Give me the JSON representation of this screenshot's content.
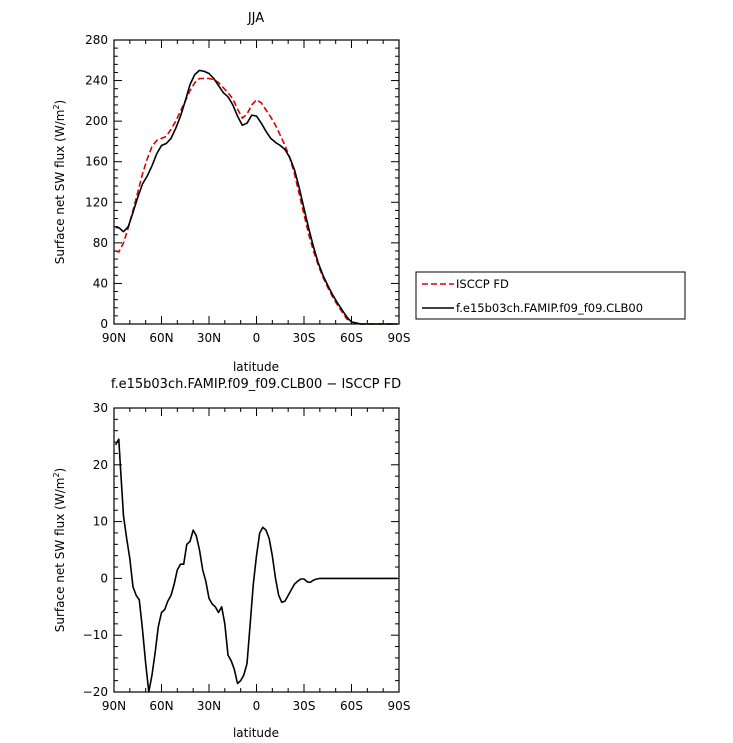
{
  "chart_data": [
    {
      "type": "line",
      "title": "JJA",
      "xlabel": "latitude",
      "ylabel": "Surface net SW flux (W/m²)",
      "ylabel_parts": {
        "main": "Surface net SW flux (W/m",
        "sup": "2",
        "end": ")"
      },
      "xlim": [
        90,
        -90
      ],
      "ylim": [
        0,
        280
      ],
      "x_ticks": [
        90,
        60,
        30,
        0,
        -30,
        -60,
        -90
      ],
      "x_tick_labels": [
        "90N",
        "60N",
        "30N",
        "0",
        "30S",
        "60S",
        "90S"
      ],
      "y_ticks": [
        0,
        40,
        80,
        120,
        160,
        200,
        240,
        280
      ],
      "y_tick_labels": [
        "0",
        "40",
        "80",
        "120",
        "160",
        "200",
        "240",
        "280"
      ],
      "legend_position": "right",
      "series": [
        {
          "name": "ISCCP FD",
          "color": "#dd0000",
          "dash": "dashed",
          "x": [
            89,
            87,
            84,
            81,
            78,
            75,
            72,
            69,
            66,
            63,
            60,
            57,
            54,
            51,
            48,
            45,
            42,
            39,
            36,
            33,
            30,
            27,
            24,
            21,
            18,
            15,
            12,
            9,
            6,
            3,
            0,
            -3,
            -6,
            -9,
            -12,
            -15,
            -18,
            -21,
            -24,
            -27,
            -30,
            -33,
            -36,
            -39,
            -42,
            -45,
            -48,
            -51,
            -54,
            -57,
            -60,
            -63,
            -66,
            -69,
            -72,
            -75,
            -78,
            -81,
            -84,
            -87,
            -89
          ],
          "y": [
            72,
            71,
            80,
            95,
            112,
            130,
            148,
            163,
            175,
            181,
            183,
            185,
            192,
            200,
            210,
            220,
            230,
            238,
            242,
            242,
            242,
            241,
            238,
            233,
            228,
            222,
            212,
            203,
            207,
            216,
            221,
            218,
            211,
            204,
            196,
            186,
            176,
            164,
            148,
            128,
            108,
            88,
            72,
            58,
            46,
            36,
            27,
            19,
            12,
            5,
            2,
            1,
            0,
            0,
            0,
            0,
            0,
            0,
            0,
            0,
            0
          ]
        },
        {
          "name": "f.e15b03ch.FAMIP.f09_f09.CLB00",
          "color": "#000000",
          "dash": "solid",
          "x": [
            89,
            87,
            84,
            81,
            78,
            75,
            72,
            69,
            66,
            63,
            60,
            57,
            54,
            51,
            48,
            45,
            42,
            39,
            36,
            33,
            30,
            27,
            24,
            21,
            18,
            15,
            12,
            9,
            6,
            3,
            0,
            -3,
            -6,
            -9,
            -12,
            -15,
            -18,
            -21,
            -24,
            -27,
            -30,
            -33,
            -36,
            -39,
            -42,
            -45,
            -48,
            -51,
            -54,
            -57,
            -60,
            -63,
            -66,
            -69,
            -72,
            -75,
            -78,
            -81,
            -84,
            -87,
            -89
          ],
          "y": [
            95,
            95,
            91,
            96,
            110,
            125,
            138,
            146,
            156,
            168,
            176,
            178,
            183,
            193,
            205,
            220,
            236,
            246,
            250,
            249,
            247,
            242,
            235,
            228,
            224,
            216,
            205,
            196,
            198,
            206,
            205,
            198,
            190,
            183,
            179,
            176,
            172,
            164,
            152,
            134,
            114,
            94,
            76,
            60,
            48,
            38,
            29,
            21,
            14,
            7,
            2,
            1,
            0,
            0,
            0,
            0,
            0,
            0,
            0,
            0,
            0
          ]
        }
      ]
    },
    {
      "type": "line",
      "title": "f.e15b03ch.FAMIP.f09_f09.CLB00 − ISCCP FD",
      "xlabel": "latitude",
      "ylabel": "Surface net SW flux (W/m²)",
      "ylabel_parts": {
        "main": "Surface net SW flux (W/m",
        "sup": "2",
        "end": ")"
      },
      "xlim": [
        90,
        -90
      ],
      "ylim": [
        -20,
        30
      ],
      "x_ticks": [
        90,
        60,
        30,
        0,
        -30,
        -60,
        -90
      ],
      "x_tick_labels": [
        "90N",
        "60N",
        "30N",
        "0",
        "30S",
        "60S",
        "90S"
      ],
      "y_ticks": [
        -20,
        -10,
        0,
        10,
        20,
        30
      ],
      "y_tick_labels": [
        "−20",
        "−10",
        "0",
        "10",
        "20",
        "30"
      ],
      "series": [
        {
          "name": "",
          "color": "#000000",
          "dash": "solid",
          "x": [
            89,
            87,
            86,
            84,
            82,
            80,
            78,
            76,
            74,
            72,
            70,
            68,
            66,
            64,
            62,
            60,
            58,
            56,
            54,
            52,
            50,
            48,
            46,
            44,
            42,
            40,
            38,
            36,
            34,
            32,
            30,
            28,
            26,
            24,
            22,
            20,
            18,
            16,
            14,
            12,
            10,
            8,
            6,
            4,
            2,
            0,
            -2,
            -4,
            -6,
            -8,
            -10,
            -12,
            -14,
            -16,
            -18,
            -20,
            -22,
            -24,
            -26,
            -28,
            -30,
            -32,
            -34,
            -36,
            -38,
            -40,
            -42,
            -44,
            -46,
            -48,
            -50,
            -52,
            -54,
            -56,
            -58,
            -60,
            -62,
            -64,
            -66,
            -68,
            -70,
            -72,
            -75,
            -78,
            -81,
            -84,
            -87,
            -89
          ],
          "y": [
            23.5,
            24.5,
            20,
            11,
            7,
            3.5,
            -1.5,
            -3,
            -3.8,
            -9,
            -15,
            -20,
            -17,
            -13,
            -8.5,
            -6,
            -5.5,
            -4,
            -3,
            -1,
            1.5,
            2.5,
            2.5,
            6,
            6.5,
            8.5,
            7.5,
            5,
            1.5,
            -0.5,
            -3.5,
            -4.5,
            -5,
            -6,
            -5,
            -8,
            -13.5,
            -14.5,
            -16,
            -18.5,
            -18,
            -17,
            -15,
            -8,
            -1,
            4,
            8,
            9,
            8.5,
            7,
            4,
            0,
            -3,
            -4.2,
            -4,
            -3,
            -2,
            -1,
            -0.5,
            -0.1,
            -0.1,
            -0.6,
            -0.7,
            -0.3,
            -0.1,
            0,
            0,
            0,
            0,
            0,
            0,
            0,
            0,
            0,
            0,
            0,
            0,
            0,
            0,
            0,
            0,
            0,
            0,
            0,
            0,
            0,
            0,
            0
          ],
          "x_domain_note": ""
        }
      ]
    }
  ]
}
